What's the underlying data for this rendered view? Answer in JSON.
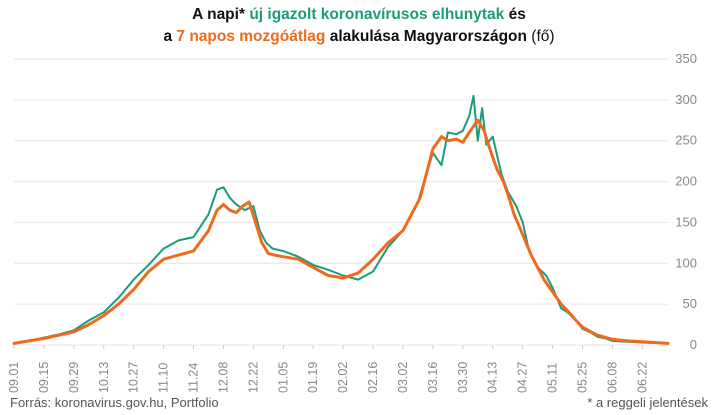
{
  "title": {
    "line1": {
      "a": "A napi* ",
      "b": "új igazolt koronavírusos elhunytak",
      "c": " és"
    },
    "line2": {
      "a": "a ",
      "b": "7 napos mozgóátlag",
      "c": " alakulása Magyarországon ",
      "d": "(fő)"
    }
  },
  "footer": {
    "source": "Forrás: koronavirus.gov.hu, Portfolio",
    "note": "* a reggeli jelentések"
  },
  "colors": {
    "daily": "#1a9b7c",
    "average": "#ee6a1c",
    "grid": "#e6e6e6",
    "axis_text": "#888888"
  },
  "chart_data": {
    "type": "line",
    "ylim": [
      0,
      350
    ],
    "y_ticks": [
      0,
      50,
      100,
      150,
      200,
      250,
      300,
      350
    ],
    "grid": true,
    "x_tick_labels": [
      "09.01",
      "09.15",
      "09.29",
      "10.13",
      "10.27",
      "11.10",
      "11.24",
      "12.08",
      "12.22",
      "01.05",
      "01.19",
      "02.02",
      "02.16",
      "03.02",
      "03.16",
      "03.30",
      "04.13",
      "04.27",
      "05.11",
      "05.25",
      "06.08",
      "06.22"
    ],
    "x_tick_days": [
      0,
      14,
      28,
      42,
      56,
      70,
      84,
      98,
      112,
      126,
      140,
      154,
      168,
      182,
      196,
      210,
      224,
      238,
      252,
      266,
      280,
      294
    ],
    "x_domain_days": [
      0,
      306
    ],
    "series": [
      {
        "key": "daily",
        "days": [
          0,
          7,
          14,
          21,
          28,
          35,
          42,
          49,
          56,
          63,
          70,
          77,
          84,
          91,
          95,
          98,
          101,
          104,
          108,
          112,
          115,
          118,
          121,
          126,
          133,
          140,
          147,
          154,
          161,
          168,
          175,
          182,
          189,
          193,
          196,
          200,
          203,
          207,
          210,
          213,
          215,
          217,
          219,
          221,
          224,
          228,
          231,
          235,
          238,
          241,
          245,
          249,
          252,
          256,
          259,
          263,
          266,
          270,
          273,
          277,
          280,
          287,
          294,
          306
        ],
        "values": [
          2,
          5,
          9,
          13,
          18,
          30,
          40,
          58,
          80,
          98,
          118,
          128,
          132,
          160,
          190,
          193,
          180,
          172,
          165,
          170,
          140,
          125,
          118,
          115,
          108,
          98,
          92,
          85,
          80,
          90,
          120,
          140,
          175,
          210,
          235,
          220,
          260,
          258,
          262,
          280,
          305,
          250,
          290,
          245,
          255,
          210,
          188,
          170,
          150,
          115,
          95,
          85,
          70,
          45,
          40,
          30,
          20,
          15,
          10,
          8,
          5,
          4,
          3,
          2
        ]
      },
      {
        "key": "average",
        "days": [
          0,
          7,
          14,
          21,
          28,
          35,
          42,
          49,
          56,
          63,
          70,
          77,
          84,
          91,
          95,
          98,
          101,
          104,
          107,
          110,
          113,
          116,
          119,
          122,
          126,
          133,
          140,
          147,
          154,
          161,
          168,
          175,
          182,
          186,
          190,
          193,
          196,
          200,
          203,
          207,
          210,
          213,
          217,
          220,
          222,
          224,
          226,
          229,
          231,
          234,
          238,
          242,
          245,
          248,
          252,
          256,
          259,
          263,
          266,
          270,
          273,
          277,
          280,
          287,
          294,
          306
        ],
        "values": [
          2,
          5,
          8,
          12,
          16,
          25,
          36,
          50,
          68,
          90,
          105,
          110,
          115,
          140,
          165,
          172,
          165,
          162,
          170,
          175,
          150,
          125,
          112,
          110,
          108,
          105,
          95,
          85,
          82,
          88,
          105,
          125,
          140,
          160,
          180,
          210,
          240,
          255,
          250,
          252,
          248,
          260,
          275,
          262,
          245,
          230,
          215,
          200,
          185,
          160,
          135,
          110,
          95,
          80,
          65,
          50,
          42,
          30,
          22,
          16,
          12,
          9,
          7,
          5,
          4,
          2
        ]
      }
    ]
  }
}
